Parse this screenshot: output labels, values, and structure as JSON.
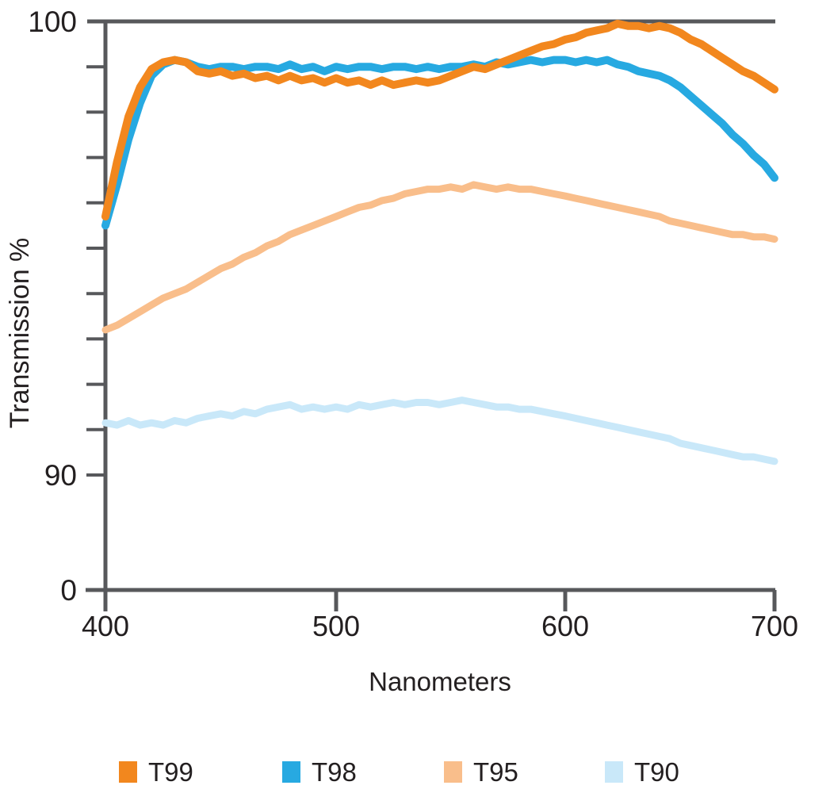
{
  "chart_data": {
    "type": "line",
    "title": "",
    "xlabel": "Nanometers",
    "ylabel": "Transmission %",
    "x_start": 400,
    "x_end": 700,
    "x_step": 5,
    "x_ticks": [
      400,
      500,
      600,
      700
    ],
    "x_tick_labels": [
      "400",
      "500",
      "600",
      "700"
    ],
    "y_tick_labels": {
      "top": "100",
      "mid": "90",
      "bottom": "0"
    },
    "y_linear_range": [
      90,
      100
    ],
    "y_minor_tick_interval": 1,
    "y_axis_break_between": [
      0,
      90
    ],
    "grid": false,
    "legend_position": "bottom",
    "axis_color": "#57585b",
    "text_color": "#231f20",
    "background_color": "#ffffff",
    "series": [
      {
        "name": "T99",
        "color": "#f2871e",
        "stroke_width": 10,
        "values": [
          95.7,
          96.9,
          97.9,
          98.55,
          98.95,
          99.1,
          99.15,
          99.1,
          98.9,
          98.85,
          98.9,
          98.8,
          98.85,
          98.75,
          98.8,
          98.7,
          98.8,
          98.7,
          98.75,
          98.65,
          98.75,
          98.65,
          98.7,
          98.6,
          98.7,
          98.6,
          98.65,
          98.7,
          98.65,
          98.7,
          98.8,
          98.9,
          99.0,
          98.95,
          99.05,
          99.15,
          99.25,
          99.35,
          99.45,
          99.5,
          99.6,
          99.65,
          99.75,
          99.8,
          99.85,
          99.95,
          99.9,
          99.9,
          99.85,
          99.9,
          99.85,
          99.75,
          99.6,
          99.5,
          99.35,
          99.2,
          99.05,
          98.9,
          98.8,
          98.65,
          98.5
        ]
      },
      {
        "name": "T98",
        "color": "#27a9e1",
        "stroke_width": 10,
        "values": [
          95.5,
          96.4,
          97.4,
          98.2,
          98.8,
          99.05,
          99.15,
          99.1,
          99.0,
          98.95,
          99.0,
          99.0,
          98.95,
          99.0,
          99.0,
          98.95,
          99.05,
          98.95,
          99.0,
          98.9,
          99.0,
          98.95,
          99.0,
          99.0,
          98.95,
          99.0,
          99.0,
          98.95,
          99.0,
          98.95,
          99.0,
          99.0,
          99.05,
          99.0,
          99.1,
          99.05,
          99.1,
          99.15,
          99.1,
          99.15,
          99.15,
          99.1,
          99.15,
          99.1,
          99.15,
          99.05,
          99.0,
          98.9,
          98.85,
          98.8,
          98.7,
          98.55,
          98.35,
          98.15,
          97.95,
          97.75,
          97.5,
          97.3,
          97.05,
          96.85,
          96.55
        ]
      },
      {
        "name": "T95",
        "color": "#f9be8b",
        "stroke_width": 9,
        "values": [
          93.2,
          93.3,
          93.45,
          93.6,
          93.75,
          93.9,
          94.0,
          94.1,
          94.25,
          94.4,
          94.55,
          94.65,
          94.8,
          94.9,
          95.05,
          95.15,
          95.3,
          95.4,
          95.5,
          95.6,
          95.7,
          95.8,
          95.9,
          95.95,
          96.05,
          96.1,
          96.2,
          96.25,
          96.3,
          96.3,
          96.35,
          96.3,
          96.4,
          96.35,
          96.3,
          96.35,
          96.3,
          96.3,
          96.25,
          96.2,
          96.15,
          96.1,
          96.05,
          96.0,
          95.95,
          95.9,
          95.85,
          95.8,
          95.75,
          95.7,
          95.6,
          95.55,
          95.5,
          95.45,
          95.4,
          95.35,
          95.3,
          95.3,
          95.25,
          95.25,
          95.2
        ]
      },
      {
        "name": "T90",
        "color": "#c9e8f9",
        "stroke_width": 9,
        "values": [
          91.15,
          91.1,
          91.2,
          91.1,
          91.15,
          91.1,
          91.2,
          91.15,
          91.25,
          91.3,
          91.35,
          91.3,
          91.4,
          91.35,
          91.45,
          91.5,
          91.55,
          91.45,
          91.5,
          91.45,
          91.5,
          91.45,
          91.55,
          91.5,
          91.55,
          91.6,
          91.55,
          91.6,
          91.6,
          91.55,
          91.6,
          91.65,
          91.6,
          91.55,
          91.5,
          91.5,
          91.45,
          91.45,
          91.4,
          91.35,
          91.3,
          91.25,
          91.2,
          91.15,
          91.1,
          91.05,
          91.0,
          90.95,
          90.9,
          90.85,
          90.8,
          90.7,
          90.65,
          90.6,
          90.55,
          90.5,
          90.45,
          90.4,
          90.4,
          90.35,
          90.3
        ]
      }
    ]
  }
}
